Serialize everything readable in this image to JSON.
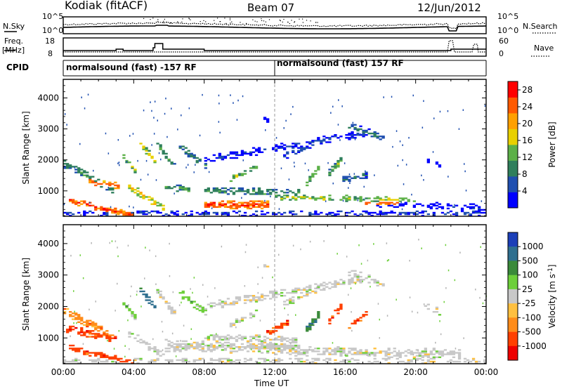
{
  "header": {
    "station": "Kodiak (fitACF)",
    "beam": "Beam 07",
    "date": "12/Jun/2012"
  },
  "side_labels": {
    "nsky": "N.Sky",
    "nsearch": "N.Search",
    "freq": "Freq.",
    "freq_unit": "[MHz]",
    "nave": "Nave",
    "cpid": "CPID"
  },
  "noise_panel": {
    "yticks": [
      "10^5",
      "10^0"
    ],
    "right_yticks": [
      "10^5",
      "10^0"
    ]
  },
  "freq_panel": {
    "yticks": [
      "18",
      "8"
    ],
    "right_yticks": [
      "60",
      "0"
    ]
  },
  "cpid_panel": {
    "segments": [
      {
        "label": "normalsound (fast) -157 RF",
        "start_hour": 0
      },
      {
        "label": "normalsound (fast) 157 RF",
        "start_hour": 12
      }
    ]
  },
  "x_axis": {
    "label": "Time UT",
    "ticks": [
      "00:00",
      "04:00",
      "08:00",
      "12:00",
      "16:00",
      "20:00",
      "00:00"
    ]
  },
  "colors": {
    "ground_scatter": "#b4b4b4"
  },
  "chart_data": [
    {
      "type": "heatmap",
      "name": "power",
      "ylabel": "Slant Range [km]",
      "ylim": [
        180,
        4600
      ],
      "yticks": [
        "1000",
        "2000",
        "3000",
        "4000"
      ],
      "xlim": [
        0,
        24
      ],
      "colorbar": {
        "label": "Power [dB]",
        "ticks": [
          "4",
          "8",
          "12",
          "16",
          "20",
          "24",
          "28"
        ],
        "range": [
          0,
          30
        ],
        "colors": [
          "#0000ff",
          "#1f4fb0",
          "#2f7f5c",
          "#5cb048",
          "#e8d000",
          "#ffa000",
          "#ff5a00",
          "#ff0000"
        ]
      },
      "blobs": [
        {
          "x0": 0.0,
          "x1": 2.8,
          "r0": 1900,
          "r1": 1050,
          "w": 150,
          "v": 13,
          "d": 0.55
        },
        {
          "x0": 1.5,
          "x1": 3.2,
          "r0": 1300,
          "r1": 1150,
          "w": 120,
          "v": 26,
          "d": 0.7
        },
        {
          "x0": 0.3,
          "x1": 4.0,
          "r0": 700,
          "r1": 200,
          "w": 110,
          "v": 27,
          "d": 0.75
        },
        {
          "x0": 3.3,
          "x1": 4.2,
          "r0": 2200,
          "r1": 1600,
          "w": 110,
          "v": 16,
          "d": 0.7
        },
        {
          "x0": 4.3,
          "x1": 5.3,
          "r0": 2600,
          "r1": 1900,
          "w": 110,
          "v": 18,
          "d": 0.7
        },
        {
          "x0": 5.3,
          "x1": 6.4,
          "r0": 2550,
          "r1": 1700,
          "w": 130,
          "v": 14,
          "d": 0.7
        },
        {
          "x0": 6.5,
          "x1": 8.1,
          "r0": 2500,
          "r1": 1800,
          "w": 120,
          "v": 12,
          "d": 0.6
        },
        {
          "x0": 3.6,
          "x1": 5.8,
          "r0": 1200,
          "r1": 400,
          "w": 130,
          "v": 20,
          "d": 0.6
        },
        {
          "x0": 5.8,
          "x1": 7.2,
          "r0": 1150,
          "r1": 1050,
          "w": 110,
          "v": 14,
          "d": 0.6
        },
        {
          "x0": 8.0,
          "x1": 11.7,
          "r0": 560,
          "r1": 560,
          "w": 150,
          "v": 27,
          "d": 0.85
        },
        {
          "x0": 8.0,
          "x1": 13.5,
          "r0": 1000,
          "r1": 950,
          "w": 120,
          "v": 13,
          "d": 0.55
        },
        {
          "x0": 9.5,
          "x1": 11.0,
          "r0": 1400,
          "r1": 1800,
          "w": 120,
          "v": 16,
          "d": 0.6
        },
        {
          "x0": 8.0,
          "x1": 17.5,
          "r0": 2000,
          "r1": 2900,
          "w": 130,
          "v": 6,
          "d": 0.55
        },
        {
          "x0": 12.5,
          "x1": 15.0,
          "r0": 2100,
          "r1": 2650,
          "w": 110,
          "v": 8,
          "d": 0.45
        },
        {
          "x0": 13.8,
          "x1": 14.6,
          "r0": 1250,
          "r1": 1800,
          "w": 120,
          "v": 16,
          "d": 0.75
        },
        {
          "x0": 15.0,
          "x1": 15.8,
          "r0": 1500,
          "r1": 2000,
          "w": 120,
          "v": 14,
          "d": 0.75
        },
        {
          "x0": 15.8,
          "x1": 17.2,
          "r0": 1350,
          "r1": 1500,
          "w": 110,
          "v": 10,
          "d": 0.6
        },
        {
          "x0": 16.2,
          "x1": 18.3,
          "r0": 3100,
          "r1": 2700,
          "w": 120,
          "v": 11,
          "d": 0.6
        },
        {
          "x0": 12.0,
          "x1": 20.0,
          "r0": 800,
          "r1": 700,
          "w": 110,
          "v": 17,
          "d": 0.55
        },
        {
          "x0": 17.0,
          "x1": 19.0,
          "r0": 620,
          "r1": 600,
          "w": 70,
          "v": 27,
          "d": 0.7
        },
        {
          "x0": 17.5,
          "x1": 24.0,
          "r0": 600,
          "r1": 450,
          "w": 110,
          "v": 6,
          "d": 0.35
        },
        {
          "x0": 0.0,
          "x1": 24.0,
          "r0": 280,
          "r1": 280,
          "w": 90,
          "v": 8,
          "d": 0.35
        },
        {
          "x0": 20.5,
          "x1": 21.5,
          "r0": 2000,
          "r1": 1800,
          "w": 120,
          "v": 5,
          "d": 0.3
        },
        {
          "x0": 11.3,
          "x1": 11.7,
          "r0": 3350,
          "r1": 3300,
          "w": 90,
          "v": 5,
          "d": 0.5
        }
      ]
    },
    {
      "type": "heatmap",
      "name": "velocity",
      "ylabel": "Slant Range [km]",
      "ylim": [
        180,
        4600
      ],
      "yticks": [
        "1000",
        "2000",
        "3000",
        "4000"
      ],
      "xlim": [
        0,
        24
      ],
      "colorbar": {
        "label": "Velocity [m s^-1]",
        "ticks": [
          "1000",
          "500",
          "100",
          "25",
          "-25",
          "-100",
          "-500",
          "-1000"
        ],
        "colors": [
          "#1c3fb8",
          "#2f6f8f",
          "#3a8a3a",
          "#6dcf3a",
          "#c8c8c8",
          "#ffc040",
          "#ff8c1a",
          "#ff4000",
          "#ee0000"
        ]
      },
      "blobs": [
        {
          "x0": 0.0,
          "x1": 2.8,
          "r0": 1900,
          "r1": 1050,
          "w": 150,
          "v": 6,
          "d": 0.55
        },
        {
          "x0": 0.2,
          "x1": 3.0,
          "r0": 1300,
          "r1": 1000,
          "w": 140,
          "v": 7,
          "d": 0.7
        },
        {
          "x0": 0.3,
          "x1": 4.0,
          "r0": 700,
          "r1": 200,
          "w": 110,
          "v": 7,
          "d": 0.7
        },
        {
          "x0": 3.3,
          "x1": 4.2,
          "r0": 2200,
          "r1": 1600,
          "w": 110,
          "v": 3,
          "d": 0.6
        },
        {
          "x0": 4.3,
          "x1": 5.3,
          "r0": 2600,
          "r1": 1900,
          "w": 110,
          "v": 1,
          "d": 0.7
        },
        {
          "x0": 5.3,
          "x1": 6.4,
          "r0": 2550,
          "r1": 1700,
          "w": 130,
          "v": 4,
          "d": 0.6
        },
        {
          "x0": 6.5,
          "x1": 8.1,
          "r0": 2500,
          "r1": 1800,
          "w": 120,
          "v": 3,
          "d": 0.6
        },
        {
          "x0": 3.6,
          "x1": 5.8,
          "r0": 1200,
          "r1": 400,
          "w": 130,
          "v": 4,
          "d": 0.6
        },
        {
          "x0": 5.8,
          "x1": 13.5,
          "r0": 750,
          "r1": 700,
          "w": 200,
          "v": 4,
          "d": 0.75
        },
        {
          "x0": 8.0,
          "x1": 13.5,
          "r0": 1000,
          "r1": 950,
          "w": 120,
          "v": 4,
          "d": 0.55
        },
        {
          "x0": 9.5,
          "x1": 11.0,
          "r0": 1400,
          "r1": 1800,
          "w": 120,
          "v": 4,
          "d": 0.6
        },
        {
          "x0": 8.0,
          "x1": 17.5,
          "r0": 2000,
          "r1": 2900,
          "w": 130,
          "v": 4,
          "d": 0.5
        },
        {
          "x0": 12.5,
          "x1": 15.0,
          "r0": 2100,
          "r1": 2650,
          "w": 110,
          "v": 4,
          "d": 0.45
        },
        {
          "x0": 11.5,
          "x1": 12.8,
          "r0": 1150,
          "r1": 1500,
          "w": 120,
          "v": 7,
          "d": 0.75
        },
        {
          "x0": 13.8,
          "x1": 14.6,
          "r0": 1250,
          "r1": 1800,
          "w": 120,
          "v": 2,
          "d": 0.75
        },
        {
          "x0": 15.0,
          "x1": 15.8,
          "r0": 1500,
          "r1": 2000,
          "w": 120,
          "v": 7,
          "d": 0.75
        },
        {
          "x0": 16.2,
          "x1": 17.2,
          "r0": 1300,
          "r1": 1800,
          "w": 120,
          "v": 7,
          "d": 0.75
        },
        {
          "x0": 16.2,
          "x1": 18.3,
          "r0": 3100,
          "r1": 2700,
          "w": 120,
          "v": 4,
          "d": 0.55
        },
        {
          "x0": 12.0,
          "x1": 22.5,
          "r0": 600,
          "r1": 500,
          "w": 160,
          "v": 4,
          "d": 0.6
        },
        {
          "x0": 0.0,
          "x1": 24.0,
          "r0": 280,
          "r1": 280,
          "w": 90,
          "v": 4,
          "d": 0.35
        },
        {
          "x0": 20.5,
          "x1": 21.5,
          "r0": 2000,
          "r1": 1800,
          "w": 120,
          "v": 4,
          "d": 0.3
        },
        {
          "x0": 11.3,
          "x1": 11.7,
          "r0": 3350,
          "r1": 3300,
          "w": 90,
          "v": 4,
          "d": 0.5
        }
      ]
    }
  ]
}
